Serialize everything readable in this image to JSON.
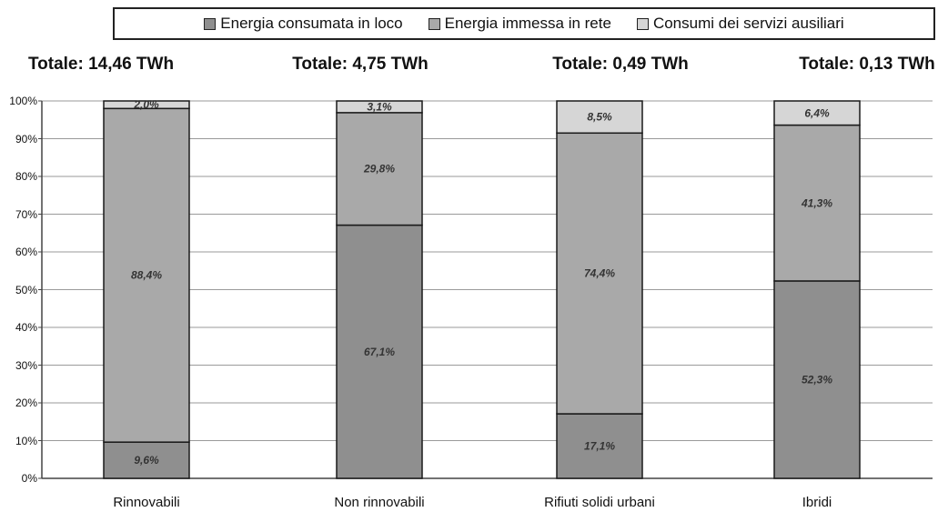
{
  "chart_data": {
    "type": "bar",
    "stacked": true,
    "categories": [
      "Rinnovabili",
      "Non rinnovabili",
      "Rifiuti solidi urbani",
      "Ibridi"
    ],
    "totals": [
      "Totale: 14,46 TWh",
      "Totale: 4,75 TWh",
      "Totale: 0,49 TWh",
      "Totale: 0,13 TWh"
    ],
    "series": [
      {
        "name": "Energia consumata in loco",
        "color": "#8f8f8f",
        "values": [
          9.6,
          67.1,
          17.1,
          52.3
        ],
        "labels": [
          "9,6%",
          "67,1%",
          "17,1%",
          "52,3%"
        ]
      },
      {
        "name": "Energia immessa in rete",
        "color": "#a9a9a9",
        "values": [
          88.4,
          29.8,
          74.4,
          41.3
        ],
        "labels": [
          "88,4%",
          "29,8%",
          "74,4%",
          "41,3%"
        ]
      },
      {
        "name": "Consumi dei servizi ausiliari",
        "color": "#d6d6d6",
        "values": [
          2.0,
          3.1,
          8.5,
          6.4
        ],
        "labels": [
          "2,0%",
          "3,1%",
          "8,5%",
          "6,4%"
        ]
      }
    ],
    "ylim": [
      0,
      100
    ],
    "yticks": [
      "0%",
      "10%",
      "20%",
      "30%",
      "40%",
      "50%",
      "60%",
      "70%",
      "80%",
      "90%",
      "100%"
    ],
    "grid": true,
    "legend_position": "top"
  }
}
